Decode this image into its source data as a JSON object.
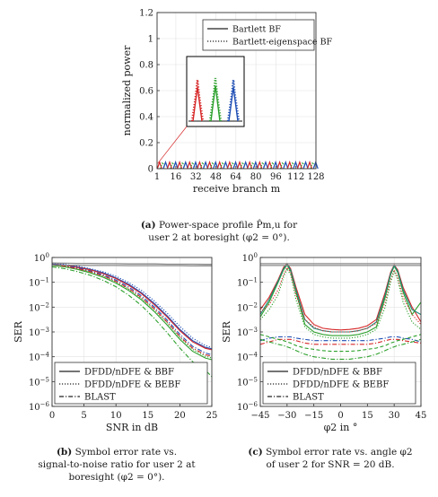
{
  "panel_a": {
    "caption_tag": "(a)",
    "caption_lines": [
      "Power-space profile P̂m,u for",
      "user 2 at boresight (φ2 = 0°)."
    ]
  },
  "panel_b": {
    "caption_tag": "(b)",
    "caption_lines": [
      "Symbol error rate vs.",
      "signal-to-noise ratio for user 2 at",
      "boresight (φ2 = 0°)."
    ]
  },
  "panel_c": {
    "caption_tag": "(c)",
    "caption_lines": [
      "Symbol error rate vs. angle φ2",
      "of user 2 for SNR = 20 dB."
    ]
  },
  "colors": {
    "red": "#d62728",
    "green": "#2ca02c",
    "blue": "#1f4fb4",
    "teal": "#1a8a7a",
    "gray": "#888888",
    "axis": "#333333"
  },
  "chart_data": [
    {
      "type": "line",
      "xlabel": "receive branch m",
      "ylabel": "normalized power",
      "xlim": [
        1,
        128
      ],
      "ylim": [
        0,
        1.2
      ],
      "xticks": [
        "1",
        "16",
        "32",
        "48",
        "64",
        "80",
        "96",
        "112",
        "128"
      ],
      "xtick_values": [
        1,
        16,
        32,
        48,
        64,
        80,
        96,
        112,
        128
      ],
      "yticks": [
        "0",
        "0.2",
        "0.4",
        "0.6",
        "0.8",
        "1",
        "1.2"
      ],
      "ytick_values": [
        0,
        0.2,
        0.4,
        0.6,
        0.8,
        1,
        1.2
      ],
      "legend": [
        {
          "label": "Bartlett BF",
          "style": "solid"
        },
        {
          "label": "Bartlett-eigenspace BF",
          "style": "dotted"
        }
      ],
      "legend_position": "top-right",
      "peak_period": 8,
      "peak_heights": {
        "red": 0.05,
        "green": 0.05,
        "blue": 0.05
      },
      "inset_peak_heights": {
        "red": 0.72,
        "green": 0.75,
        "blue": 0.72
      }
    },
    {
      "type": "line",
      "xlabel": "SNR in dB",
      "ylabel": "SER",
      "y_scale": "log",
      "xlim": [
        0,
        25
      ],
      "ylim_exp": [
        -6,
        0
      ],
      "xticks": [
        "0",
        "5",
        "10",
        "15",
        "20",
        "25"
      ],
      "yticks": [
        "10^0",
        "10^-1",
        "10^-2",
        "10^-3",
        "10^-4",
        "10^-5",
        "10^-6"
      ],
      "legend": [
        {
          "label": "DFDD/nDFE & BBF",
          "style": "solid"
        },
        {
          "label": "DFDD/nDFE & BEBF",
          "style": "dotted"
        },
        {
          "label": "BLAST",
          "style": "dashdot"
        }
      ],
      "legend_position": "bottom-left",
      "x": [
        0,
        2,
        4,
        6,
        8,
        10,
        12,
        14,
        16,
        18,
        20,
        22,
        24,
        25
      ],
      "series": [
        {
          "color": "blue",
          "style": "solid",
          "log10_values": [
            -0.26,
            -0.3,
            -0.38,
            -0.48,
            -0.62,
            -0.82,
            -1.08,
            -1.42,
            -1.85,
            -2.35,
            -2.9,
            -3.35,
            -3.62,
            -3.68
          ]
        },
        {
          "color": "red",
          "style": "solid",
          "log10_values": [
            -0.27,
            -0.31,
            -0.4,
            -0.5,
            -0.65,
            -0.85,
            -1.12,
            -1.46,
            -1.9,
            -2.4,
            -2.95,
            -3.4,
            -3.66,
            -3.72
          ]
        },
        {
          "color": "green",
          "style": "solid",
          "log10_values": [
            -0.32,
            -0.38,
            -0.48,
            -0.62,
            -0.8,
            -1.03,
            -1.33,
            -1.71,
            -2.18,
            -2.72,
            -3.3,
            -3.78,
            -4.05,
            -4.12
          ]
        },
        {
          "color": "blue",
          "style": "dotted",
          "log10_values": [
            -0.24,
            -0.28,
            -0.35,
            -0.45,
            -0.58,
            -0.76,
            -1.01,
            -1.33,
            -1.75,
            -2.24,
            -2.78,
            -3.25,
            -3.55,
            -3.62
          ]
        },
        {
          "color": "green",
          "style": "dotted",
          "log10_values": [
            -0.3,
            -0.36,
            -0.45,
            -0.58,
            -0.75,
            -0.98,
            -1.28,
            -1.65,
            -2.1,
            -2.63,
            -3.22,
            -3.7,
            -3.98,
            -4.05
          ]
        },
        {
          "color": "blue",
          "style": "dashdot",
          "log10_values": [
            -0.28,
            -0.33,
            -0.42,
            -0.54,
            -0.7,
            -0.91,
            -1.19,
            -1.55,
            -2.0,
            -2.52,
            -3.1,
            -3.58,
            -3.85,
            -3.92
          ]
        },
        {
          "color": "red",
          "style": "dashdot",
          "log10_values": [
            -0.3,
            -0.35,
            -0.45,
            -0.57,
            -0.74,
            -0.96,
            -1.25,
            -1.62,
            -2.07,
            -2.6,
            -3.18,
            -3.65,
            -3.92,
            -3.98
          ]
        },
        {
          "color": "green",
          "style": "dashdot",
          "log10_values": [
            -0.38,
            -0.45,
            -0.57,
            -0.72,
            -0.92,
            -1.18,
            -1.52,
            -1.94,
            -2.45,
            -3.03,
            -3.65,
            -4.2,
            -4.55,
            -4.8
          ]
        },
        {
          "color": "gray",
          "style": "solid",
          "log10_values": [
            -0.22,
            -0.23,
            -0.24,
            -0.24,
            -0.25,
            -0.25,
            -0.26,
            -0.26,
            -0.26,
            -0.27,
            -0.27,
            -0.27,
            -0.28,
            -0.28
          ]
        },
        {
          "color": "gray",
          "style": "solid",
          "log10_values": [
            -0.3,
            -0.31,
            -0.31,
            -0.32,
            -0.32,
            -0.32,
            -0.33,
            -0.33,
            -0.33,
            -0.33,
            -0.33,
            -0.34,
            -0.34,
            -0.34
          ]
        }
      ]
    },
    {
      "type": "line",
      "xlabel": "φ2 in °",
      "ylabel": "SER",
      "y_scale": "log",
      "xlim": [
        -45,
        45
      ],
      "ylim_exp": [
        -6,
        0
      ],
      "xticks": [
        "−45",
        "−30",
        "−15",
        "0",
        "15",
        "30",
        "45"
      ],
      "xtick_values": [
        -45,
        -30,
        -15,
        0,
        15,
        30,
        45
      ],
      "yticks": [
        "10^0",
        "10^-1",
        "10^-2",
        "10^-3",
        "10^-4",
        "10^-5",
        "10^-6"
      ],
      "legend": [
        {
          "label": "DFDD/nDFE & BBF",
          "style": "solid"
        },
        {
          "label": "DFDD/nDFE & BEBF",
          "style": "dotted"
        },
        {
          "label": "BLAST",
          "style": "dashdot"
        }
      ],
      "legend_position": "bottom-left",
      "x": [
        -45,
        -40,
        -35,
        -32,
        -30,
        -28,
        -25,
        -20,
        -15,
        -10,
        -5,
        0,
        5,
        10,
        15,
        20,
        25,
        28,
        30,
        32,
        35,
        40,
        45
      ],
      "series": [
        {
          "color": "red",
          "style": "solid",
          "log10_values": [
            -2.1,
            -1.6,
            -0.9,
            -0.4,
            -0.25,
            -0.45,
            -1.2,
            -2.3,
            -2.7,
            -2.85,
            -2.9,
            -2.92,
            -2.9,
            -2.85,
            -2.75,
            -2.5,
            -1.4,
            -0.6,
            -0.3,
            -0.5,
            -1.2,
            -2.0,
            -2.6
          ]
        },
        {
          "color": "green",
          "style": "solid",
          "log10_values": [
            -2.4,
            -1.8,
            -1.0,
            -0.5,
            -0.3,
            -0.55,
            -1.4,
            -2.7,
            -3.0,
            -3.1,
            -3.15,
            -3.15,
            -3.15,
            -3.1,
            -3.0,
            -2.8,
            -1.6,
            -0.7,
            -0.35,
            -0.6,
            -1.4,
            -2.3,
            -1.8
          ]
        },
        {
          "color": "teal",
          "style": "solid",
          "log10_values": [
            -2.3,
            -1.7,
            -0.95,
            -0.45,
            -0.28,
            -0.5,
            -1.3,
            -2.5,
            -2.85,
            -2.95,
            -3.0,
            -3.0,
            -3.0,
            -2.95,
            -2.85,
            -2.6,
            -1.5,
            -0.65,
            -0.32,
            -0.55,
            -1.3,
            -2.1,
            -2.3
          ]
        },
        {
          "color": "red",
          "style": "dotted",
          "log10_values": [
            -2.2,
            -1.9,
            -1.3,
            -0.7,
            -0.4,
            -0.6,
            -1.5,
            -2.5,
            -2.8,
            -2.95,
            -3.0,
            -3.0,
            -3.0,
            -2.95,
            -2.85,
            -2.65,
            -1.8,
            -0.9,
            -0.5,
            -0.8,
            -1.6,
            -2.3,
            -2.7
          ]
        },
        {
          "color": "green",
          "style": "dotted",
          "log10_values": [
            -2.5,
            -2.1,
            -1.5,
            -0.8,
            -0.45,
            -0.7,
            -1.7,
            -2.8,
            -3.1,
            -3.2,
            -3.25,
            -3.25,
            -3.25,
            -3.2,
            -3.1,
            -2.9,
            -2.0,
            -1.0,
            -0.55,
            -0.9,
            -1.8,
            -2.6,
            -2.9
          ]
        },
        {
          "color": "blue",
          "style": "dashdot",
          "log10_values": [
            -3.35,
            -3.25,
            -3.2,
            -3.2,
            -3.2,
            -3.2,
            -3.25,
            -3.3,
            -3.35,
            -3.35,
            -3.35,
            -3.35,
            -3.35,
            -3.35,
            -3.35,
            -3.3,
            -3.25,
            -3.2,
            -3.2,
            -3.2,
            -3.25,
            -3.3,
            -3.4
          ]
        },
        {
          "color": "red",
          "style": "dashdot",
          "log10_values": [
            -3.5,
            -3.4,
            -3.3,
            -3.3,
            -3.3,
            -3.3,
            -3.35,
            -3.45,
            -3.5,
            -3.5,
            -3.5,
            -3.5,
            -3.5,
            -3.5,
            -3.5,
            -3.45,
            -3.35,
            -3.3,
            -3.3,
            -3.3,
            -3.35,
            -3.4,
            -3.45
          ]
        },
        {
          "color": "green",
          "style": "dashdot",
          "log10_values": [
            -3.3,
            -3.4,
            -3.5,
            -3.55,
            -3.6,
            -3.65,
            -3.75,
            -3.9,
            -4.0,
            -4.05,
            -4.1,
            -4.1,
            -4.1,
            -4.05,
            -4.0,
            -3.9,
            -3.75,
            -3.65,
            -3.6,
            -3.55,
            -3.5,
            -3.4,
            -3.3
          ]
        },
        {
          "color": "green",
          "style": "dashed",
          "log10_values": [
            -3.1,
            -3.2,
            -3.3,
            -3.35,
            -3.4,
            -3.45,
            -3.55,
            -3.65,
            -3.7,
            -3.75,
            -3.78,
            -3.78,
            -3.78,
            -3.75,
            -3.7,
            -3.65,
            -3.55,
            -3.45,
            -3.4,
            -3.35,
            -3.3,
            -3.2,
            -3.1
          ]
        },
        {
          "color": "gray",
          "style": "solid",
          "log10_values": [
            -0.25,
            -0.25,
            -0.25,
            -0.25,
            -0.25,
            -0.25,
            -0.25,
            -0.25,
            -0.25,
            -0.25,
            -0.25,
            -0.25,
            -0.25,
            -0.25,
            -0.25,
            -0.25,
            -0.25,
            -0.25,
            -0.25,
            -0.25,
            -0.25,
            -0.25,
            -0.25
          ]
        },
        {
          "color": "gray",
          "style": "solid",
          "log10_values": [
            -0.32,
            -0.32,
            -0.32,
            -0.32,
            -0.32,
            -0.32,
            -0.32,
            -0.32,
            -0.32,
            -0.32,
            -0.32,
            -0.32,
            -0.32,
            -0.32,
            -0.32,
            -0.32,
            -0.32,
            -0.32,
            -0.32,
            -0.32,
            -0.32,
            -0.32,
            -0.32
          ]
        }
      ]
    }
  ]
}
